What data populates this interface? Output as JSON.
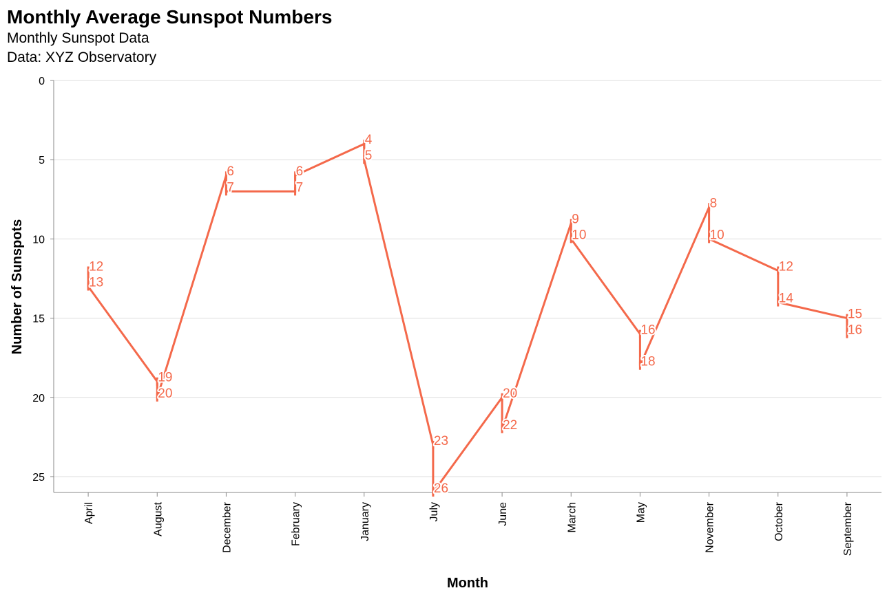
{
  "chart_data": {
    "type": "line",
    "title": "Monthly Average Sunspot Numbers",
    "subtitle": [
      "Monthly Sunspot Data",
      "Data: XYZ Observatory"
    ],
    "xlabel": "Month",
    "ylabel": "Number of Sunspots",
    "categories": [
      "April",
      "August",
      "December",
      "February",
      "January",
      "July",
      "June",
      "March",
      "May",
      "November",
      "October",
      "September"
    ],
    "ylim": [
      0,
      26
    ],
    "y_reversed": true,
    "y_ticks": [
      0,
      5,
      10,
      15,
      20,
      25
    ],
    "grid": true,
    "series": [
      {
        "color": "#f4694b",
        "points": [
          {
            "x": "April",
            "y": 12
          },
          {
            "x": "April",
            "y": 13
          },
          {
            "x": "August",
            "y": 19
          },
          {
            "x": "August",
            "y": 20
          },
          {
            "x": "December",
            "y": 6
          },
          {
            "x": "December",
            "y": 7
          },
          {
            "x": "February",
            "y": 7
          },
          {
            "x": "February",
            "y": 6
          },
          {
            "x": "January",
            "y": 4
          },
          {
            "x": "January",
            "y": 5
          },
          {
            "x": "July",
            "y": 23
          },
          {
            "x": "July",
            "y": 26
          },
          {
            "x": "June",
            "y": 20
          },
          {
            "x": "June",
            "y": 22
          },
          {
            "x": "March",
            "y": 9
          },
          {
            "x": "March",
            "y": 10
          },
          {
            "x": "May",
            "y": 16
          },
          {
            "x": "May",
            "y": 18
          },
          {
            "x": "November",
            "y": 8
          },
          {
            "x": "November",
            "y": 10
          },
          {
            "x": "October",
            "y": 12
          },
          {
            "x": "October",
            "y": 14
          },
          {
            "x": "September",
            "y": 15
          },
          {
            "x": "September",
            "y": 16
          }
        ]
      }
    ]
  }
}
